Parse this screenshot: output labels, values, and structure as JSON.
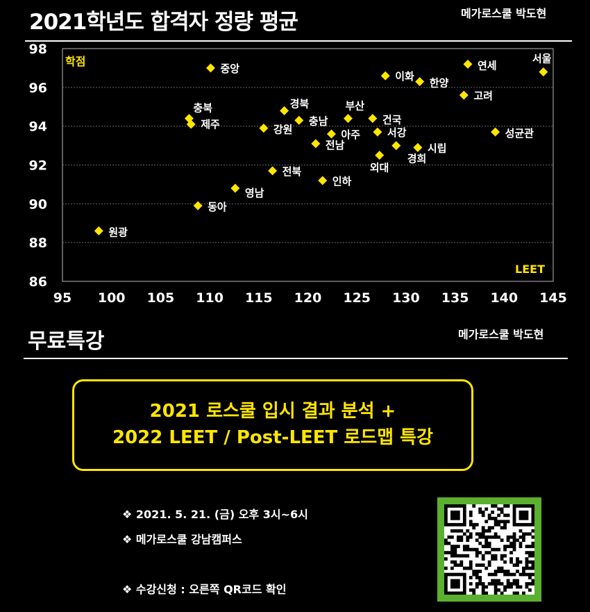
{
  "header": {
    "title": "2021학년도 합격자 정량 평균",
    "author": "메가로스쿨 박도현"
  },
  "chart_data": {
    "type": "scatter",
    "title": "2021학년도 합격자 정량 평균",
    "xlabel": "LEET",
    "ylabel": "학점",
    "xlim": [
      95,
      145
    ],
    "ylim": [
      86,
      98
    ],
    "xticks": [
      95,
      100,
      105,
      110,
      115,
      120,
      125,
      130,
      135,
      140,
      145
    ],
    "yticks": [
      86,
      88,
      90,
      92,
      94,
      96,
      98
    ],
    "grid": true,
    "marker_color": "#ffe600",
    "points": [
      {
        "label": "서울",
        "x": 144.0,
        "y": 96.8
      },
      {
        "label": "연세",
        "x": 136.3,
        "y": 97.2
      },
      {
        "label": "고려",
        "x": 135.9,
        "y": 95.6
      },
      {
        "label": "성균관",
        "x": 139.1,
        "y": 93.7
      },
      {
        "label": "이화",
        "x": 127.9,
        "y": 96.6
      },
      {
        "label": "한양",
        "x": 131.4,
        "y": 96.3
      },
      {
        "label": "중앙",
        "x": 110.1,
        "y": 97.0
      },
      {
        "label": "부산",
        "x": 124.1,
        "y": 94.4
      },
      {
        "label": "건국",
        "x": 126.6,
        "y": 94.4
      },
      {
        "label": "서강",
        "x": 127.1,
        "y": 93.7
      },
      {
        "label": "경희",
        "x": 129.0,
        "y": 93.0
      },
      {
        "label": "시립",
        "x": 131.2,
        "y": 92.9
      },
      {
        "label": "외대",
        "x": 127.3,
        "y": 92.5
      },
      {
        "label": "경북",
        "x": 117.6,
        "y": 94.8
      },
      {
        "label": "충남",
        "x": 119.1,
        "y": 94.3
      },
      {
        "label": "아주",
        "x": 122.4,
        "y": 93.6
      },
      {
        "label": "전남",
        "x": 120.8,
        "y": 93.1
      },
      {
        "label": "강원",
        "x": 115.5,
        "y": 93.9
      },
      {
        "label": "충북",
        "x": 107.9,
        "y": 94.4
      },
      {
        "label": "제주",
        "x": 108.1,
        "y": 94.1
      },
      {
        "label": "전북",
        "x": 116.4,
        "y": 91.7
      },
      {
        "label": "인하",
        "x": 121.5,
        "y": 91.2
      },
      {
        "label": "영남",
        "x": 112.6,
        "y": 90.8
      },
      {
        "label": "동아",
        "x": 108.8,
        "y": 89.9
      },
      {
        "label": "원광",
        "x": 98.7,
        "y": 88.6
      }
    ]
  },
  "section2": {
    "title": "무료특강",
    "author": "메가로스쿨 박도현"
  },
  "promo": {
    "line1": "2021 로스쿨 입시 결과 분석 +",
    "line2": "2022 LEET / Post-LEET 로드맵 특강"
  },
  "bullets": {
    "date": "❖ 2021. 5. 21. (금) 오후 3시~6시",
    "place": "❖ 메가로스쿨 강남캠퍼스",
    "apply": "❖ 수강신청 : 오른쪽 QR코드 확인"
  }
}
